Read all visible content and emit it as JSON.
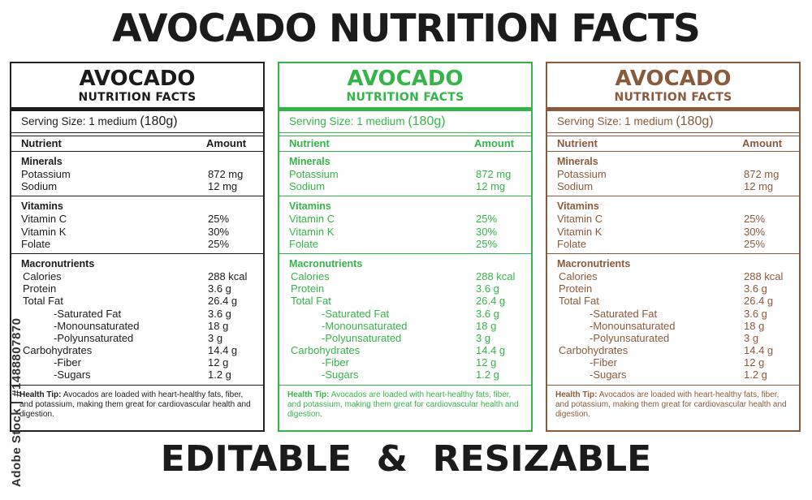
{
  "title": "AVOCADO NUTRITION FACTS",
  "footer": "EDITABLE  &  RESIZABLE",
  "watermark_side": "Adobe Stock | #1488807870",
  "labels": [
    {
      "theme": "black",
      "color": "#1b1b1b",
      "name": "AVOCADO",
      "subtitle": "NUTRITION FACTS",
      "serving_prefix": "Serving Size: 1 medium",
      "serving_amount": "(180g)",
      "col_nutrient": "Nutrient",
      "col_amount": "Amount",
      "minerals": {
        "title": "Minerals",
        "rows": [
          {
            "name": "Potassium",
            "value": "872 mg"
          },
          {
            "name": "Sodium",
            "value": "12 mg"
          }
        ]
      },
      "vitamins": {
        "title": "Vitamins",
        "rows": [
          {
            "name": "Vitamin C",
            "value": "25%"
          },
          {
            "name": "Vitamin K",
            "value": "30%"
          },
          {
            "name": "Folate",
            "value": "25%"
          }
        ]
      },
      "macros": {
        "title": "Macronutrients",
        "rows": [
          {
            "name": "Calories",
            "value": "288 kcal"
          },
          {
            "name": "Protein",
            "value": "3.6 g"
          },
          {
            "name": "Total Fat",
            "value": "26.4 g"
          },
          {
            "name": "-Saturated Fat",
            "value": "3.6 g"
          },
          {
            "name": "-Monounsaturated",
            "value": "18 g"
          },
          {
            "name": "-Polyunsaturated",
            "value": "3 g"
          },
          {
            "name": "Carbohydrates",
            "value": "14.4 g"
          },
          {
            "name": "-Fiber",
            "value": "12 g"
          },
          {
            "name": "-Sugars",
            "value": "1.2 g"
          }
        ]
      },
      "tip_label": "Health Tip:",
      "tip_text": "Avocados are loaded with heart-healthy fats, fiber, and potassium, making them great for cardiovascular health and digestion."
    },
    {
      "theme": "green",
      "color": "#35b44a",
      "name": "AVOCADO",
      "subtitle": "NUTRITION FACTS",
      "serving_prefix": "Serving Size: 1 medium",
      "serving_amount": "(180g)",
      "col_nutrient": "Nutrient",
      "col_amount": "Amount",
      "minerals": {
        "title": "Minerals",
        "rows": [
          {
            "name": "Potassium",
            "value": "872 mg"
          },
          {
            "name": "Sodium",
            "value": "12 mg"
          }
        ]
      },
      "vitamins": {
        "title": "Vitamins",
        "rows": [
          {
            "name": "Vitamin C",
            "value": "25%"
          },
          {
            "name": "Vitamin K",
            "value": "30%"
          },
          {
            "name": "Folate",
            "value": "25%"
          }
        ]
      },
      "macros": {
        "title": "Macronutrients",
        "rows": [
          {
            "name": "Calories",
            "value": "288 kcal"
          },
          {
            "name": "Protein",
            "value": "3.6 g"
          },
          {
            "name": "Total Fat",
            "value": "26.4 g"
          },
          {
            "name": "-Saturated Fat",
            "value": "3.6 g"
          },
          {
            "name": "-Monounsaturated",
            "value": "18 g"
          },
          {
            "name": "-Polyunsaturated",
            "value": "3 g"
          },
          {
            "name": "Carbohydrates",
            "value": "14.4 g"
          },
          {
            "name": "-Fiber",
            "value": "12 g"
          },
          {
            "name": "-Sugars",
            "value": "1.2 g"
          }
        ]
      },
      "tip_label": "Health Tip:",
      "tip_text": "Avocados are loaded with heart-healthy fats, fiber, and potassium, making them great for cardiovascular health and digestion."
    },
    {
      "theme": "brown",
      "color": "#8a5a3c",
      "name": "AVOCADO",
      "subtitle": "NUTRITION FACTS",
      "serving_prefix": "Serving Size: 1 medium",
      "serving_amount": "(180g)",
      "col_nutrient": "Nutrient",
      "col_amount": "Amount",
      "minerals": {
        "title": "Minerals",
        "rows": [
          {
            "name": "Potassium",
            "value": "872 mg"
          },
          {
            "name": "Sodium",
            "value": "12 mg"
          }
        ]
      },
      "vitamins": {
        "title": "Vitamins",
        "rows": [
          {
            "name": "Vitamin C",
            "value": "25%"
          },
          {
            "name": "Vitamin K",
            "value": "30%"
          },
          {
            "name": "Folate",
            "value": "25%"
          }
        ]
      },
      "macros": {
        "title": "Macronutrients",
        "rows": [
          {
            "name": "Calories",
            "value": "288 kcal"
          },
          {
            "name": "Protein",
            "value": "3.6 g"
          },
          {
            "name": "Total Fat",
            "value": "26.4 g"
          },
          {
            "name": "-Saturated Fat",
            "value": "3.6 g"
          },
          {
            "name": "-Monounsaturated",
            "value": "18 g"
          },
          {
            "name": "-Polyunsaturated",
            "value": "3 g"
          },
          {
            "name": "Carbohydrates",
            "value": "14.4 g"
          },
          {
            "name": "-Fiber",
            "value": "12 g"
          },
          {
            "name": "-Sugars",
            "value": "1.2 g"
          }
        ]
      },
      "tip_label": "Health Tip:",
      "tip_text": "Avocados are loaded with heart-healthy fats, fiber, and potassium, making them great for cardiovascular health and digestion."
    }
  ]
}
